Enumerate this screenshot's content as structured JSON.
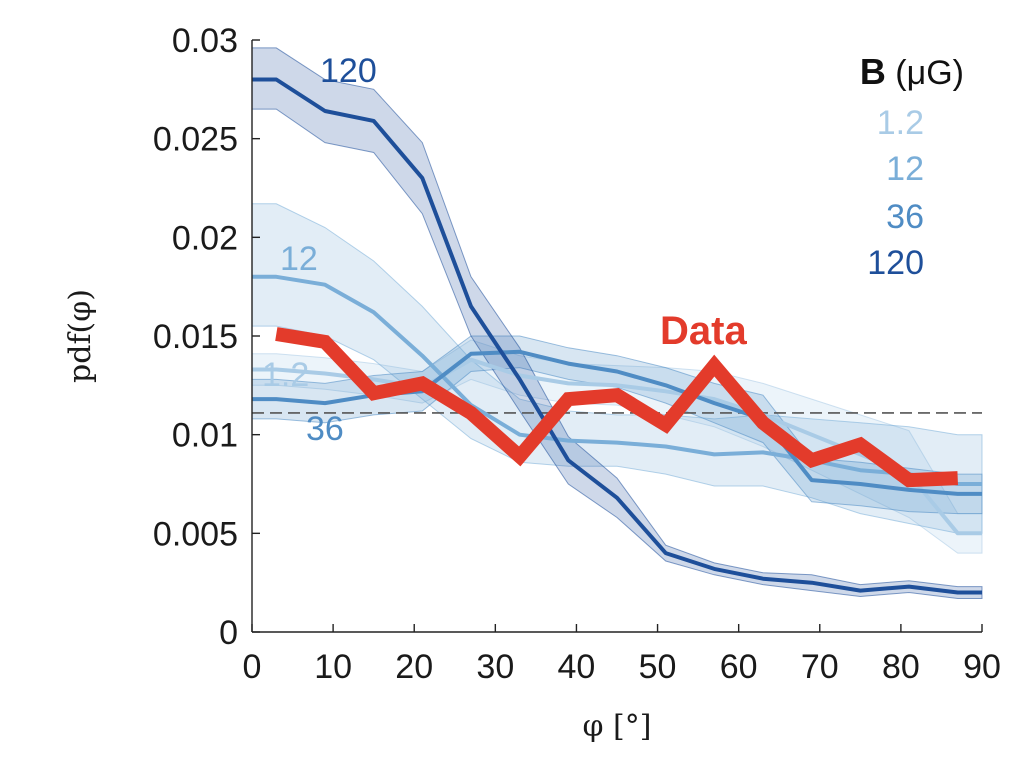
{
  "chart_data": {
    "type": "line",
    "xlabel": "φ [°]",
    "ylabel": "pdf(φ)",
    "xlim": [
      0,
      90
    ],
    "ylim": [
      0,
      0.03
    ],
    "xticks": [
      0,
      10,
      20,
      30,
      40,
      50,
      60,
      70,
      80,
      90
    ],
    "xtick_labels": [
      "0",
      "10",
      "20",
      "30",
      "40",
      "50",
      "60",
      "70",
      "80",
      "90"
    ],
    "yticks": [
      0,
      0.005,
      0.01,
      0.015,
      0.02,
      0.025,
      0.03
    ],
    "ytick_labels": [
      "0",
      "0.005",
      "0.01",
      "0.015",
      "0.02",
      "0.025",
      "0.03"
    ],
    "grid": false,
    "reference_line": {
      "y": 0.0111,
      "style": "dashed",
      "color": "#555555"
    },
    "legend": {
      "title_bold": "B",
      "title_unit": "(μG)",
      "position": "top-right",
      "entries": [
        "1.2",
        "12",
        "36",
        "120"
      ]
    },
    "x": [
      0,
      3,
      9,
      15,
      21,
      27,
      33,
      39,
      45,
      51,
      57,
      63,
      69,
      75,
      81,
      87,
      90
    ],
    "series": [
      {
        "name": "1.2",
        "label": "1.2",
        "color": "#a9cbe6",
        "values": [
          0.0133,
          0.0133,
          0.0131,
          0.0128,
          0.0124,
          0.0138,
          0.013,
          0.0126,
          0.0125,
          0.0122,
          0.0118,
          0.011,
          0.01,
          0.009,
          0.008,
          0.005,
          0.005
        ],
        "lower": [
          0.0125,
          0.0125,
          0.0123,
          0.012,
          0.0116,
          0.0128,
          0.012,
          0.0116,
          0.0115,
          0.011,
          0.0104,
          0.0094,
          0.0082,
          0.007,
          0.0058,
          0.004,
          0.004
        ],
        "upper": [
          0.0141,
          0.0141,
          0.0139,
          0.0136,
          0.0132,
          0.0148,
          0.014,
          0.0136,
          0.0135,
          0.0134,
          0.0132,
          0.0126,
          0.0118,
          0.011,
          0.0102,
          0.006,
          0.006
        ]
      },
      {
        "name": "12",
        "label": "12",
        "color": "#7aaed8",
        "values": [
          0.018,
          0.018,
          0.0176,
          0.0162,
          0.014,
          0.0115,
          0.01,
          0.0097,
          0.0096,
          0.0094,
          0.009,
          0.0091,
          0.0087,
          0.0082,
          0.008,
          0.0075,
          0.0075
        ],
        "lower": [
          0.0155,
          0.0155,
          0.015,
          0.0138,
          0.0118,
          0.0098,
          0.0086,
          0.0084,
          0.0084,
          0.008,
          0.0074,
          0.0074,
          0.0068,
          0.006,
          0.0055,
          0.005,
          0.005
        ],
        "upper": [
          0.0217,
          0.0217,
          0.0205,
          0.0188,
          0.0165,
          0.0138,
          0.0118,
          0.0112,
          0.011,
          0.011,
          0.0108,
          0.011,
          0.0108,
          0.0106,
          0.0104,
          0.01,
          0.01
        ]
      },
      {
        "name": "36",
        "label": "36",
        "color": "#4f8cc4",
        "values": [
          0.0118,
          0.0118,
          0.0116,
          0.012,
          0.0122,
          0.0141,
          0.0142,
          0.0136,
          0.0132,
          0.0125,
          0.0116,
          0.0108,
          0.0077,
          0.0075,
          0.0072,
          0.007,
          0.007
        ],
        "lower": [
          0.0108,
          0.0108,
          0.0106,
          0.011,
          0.0112,
          0.0132,
          0.0134,
          0.0128,
          0.0124,
          0.0116,
          0.0106,
          0.0096,
          0.0066,
          0.0064,
          0.0061,
          0.006,
          0.006
        ],
        "upper": [
          0.0128,
          0.0128,
          0.0126,
          0.013,
          0.0132,
          0.015,
          0.015,
          0.0144,
          0.014,
          0.0134,
          0.0126,
          0.012,
          0.0088,
          0.0086,
          0.0083,
          0.008,
          0.008
        ]
      },
      {
        "name": "120",
        "label": "120",
        "color": "#1e4f9a",
        "values": [
          0.028,
          0.028,
          0.0264,
          0.0259,
          0.023,
          0.0165,
          0.0128,
          0.0087,
          0.0068,
          0.004,
          0.0032,
          0.0027,
          0.0025,
          0.0021,
          0.0023,
          0.002,
          0.002
        ],
        "lower": [
          0.0265,
          0.0265,
          0.0248,
          0.0243,
          0.0212,
          0.015,
          0.0112,
          0.0075,
          0.0058,
          0.0036,
          0.0029,
          0.0024,
          0.0021,
          0.0018,
          0.002,
          0.0017,
          0.0017
        ],
        "upper": [
          0.0296,
          0.0296,
          0.028,
          0.0275,
          0.0248,
          0.018,
          0.0144,
          0.0099,
          0.0078,
          0.0044,
          0.0035,
          0.003,
          0.0029,
          0.0024,
          0.0026,
          0.0023,
          0.0023
        ]
      },
      {
        "name": "Data",
        "label": "Data",
        "color": "#e33b2b",
        "x": [
          3,
          9,
          15,
          21,
          27,
          33,
          39,
          45,
          51,
          57,
          63,
          69,
          75,
          81,
          87
        ],
        "values": [
          0.0151,
          0.0147,
          0.0121,
          0.0126,
          0.0111,
          0.0089,
          0.0118,
          0.012,
          0.0105,
          0.0135,
          0.0106,
          0.0087,
          0.0095,
          0.0077,
          0.0078
        ]
      }
    ]
  }
}
